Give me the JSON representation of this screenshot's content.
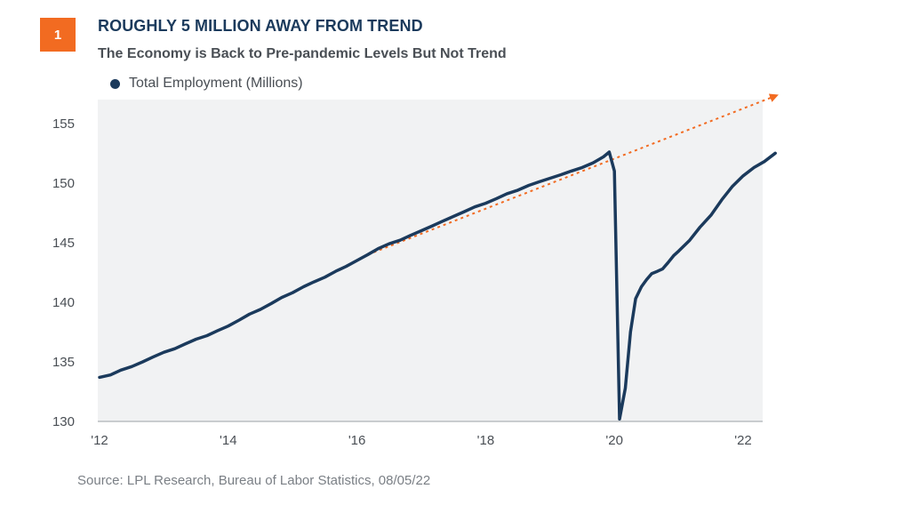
{
  "badge": "1",
  "title": "ROUGHLY 5 MILLION AWAY FROM TREND",
  "subtitle": "The Economy is Back to Pre-pandemic Levels But Not Trend",
  "source": "Source: LPL Research, Bureau of Labor Statistics,  08/05/22",
  "colors": {
    "series": "#1b3a5c",
    "trend": "#f26b21",
    "plot_bg": "#f1f2f3",
    "badge": "#f26b21"
  },
  "chart_data": {
    "type": "line",
    "title": "ROUGHLY 5 MILLION AWAY FROM TREND",
    "subtitle": "The Economy is Back to Pre-pandemic Levels But Not Trend",
    "xlabel": "",
    "ylabel": "",
    "xlim": [
      2012,
      2022.5
    ],
    "ylim": [
      130,
      157
    ],
    "x_ticks": [
      2012,
      2014,
      2016,
      2018,
      2020,
      2022
    ],
    "x_tick_labels": [
      "'12",
      "'14",
      "'16",
      "'18",
      "'20",
      "'22"
    ],
    "y_ticks": [
      130,
      135,
      140,
      145,
      150,
      155
    ],
    "y_tick_labels": [
      "130",
      "135",
      "140",
      "145",
      "150",
      "155"
    ],
    "grid": false,
    "legend": "top-left",
    "series": [
      {
        "name": "Total Employment (Millions)",
        "x": [
          2012.0,
          2012.17,
          2012.33,
          2012.5,
          2012.67,
          2012.83,
          2013.0,
          2013.17,
          2013.33,
          2013.5,
          2013.67,
          2013.83,
          2014.0,
          2014.17,
          2014.33,
          2014.5,
          2014.67,
          2014.83,
          2015.0,
          2015.17,
          2015.33,
          2015.5,
          2015.67,
          2015.83,
          2016.0,
          2016.17,
          2016.33,
          2016.5,
          2016.67,
          2016.83,
          2017.0,
          2017.17,
          2017.33,
          2017.5,
          2017.67,
          2017.83,
          2018.0,
          2018.17,
          2018.33,
          2018.5,
          2018.67,
          2018.83,
          2019.0,
          2019.17,
          2019.33,
          2019.5,
          2019.67,
          2019.83,
          2019.92,
          2020.0,
          2020.08,
          2020.17,
          2020.25,
          2020.33,
          2020.42,
          2020.5,
          2020.58,
          2020.67,
          2020.75,
          2020.83,
          2020.92,
          2021.0,
          2021.17,
          2021.33,
          2021.5,
          2021.67,
          2021.83,
          2022.0,
          2022.17,
          2022.33,
          2022.5
        ],
        "values": [
          133.7,
          133.9,
          134.3,
          134.6,
          135.0,
          135.4,
          135.8,
          136.1,
          136.5,
          136.9,
          137.2,
          137.6,
          138.0,
          138.5,
          139.0,
          139.4,
          139.9,
          140.4,
          140.8,
          141.3,
          141.7,
          142.1,
          142.6,
          143.0,
          143.5,
          144.0,
          144.5,
          144.9,
          145.2,
          145.6,
          146.0,
          146.4,
          146.8,
          147.2,
          147.6,
          148.0,
          148.3,
          148.7,
          149.1,
          149.4,
          149.8,
          150.1,
          150.4,
          150.7,
          151.0,
          151.3,
          151.7,
          152.2,
          152.6,
          151.0,
          130.2,
          132.8,
          137.5,
          140.3,
          141.3,
          141.9,
          142.4,
          142.6,
          142.8,
          143.3,
          143.9,
          144.3,
          145.2,
          146.3,
          147.3,
          148.6,
          149.7,
          150.6,
          151.3,
          151.8,
          152.5
        ]
      }
    ],
    "trend": {
      "x": [
        2016.17,
        2022.5
      ],
      "values": [
        144.0,
        157.3
      ]
    }
  }
}
